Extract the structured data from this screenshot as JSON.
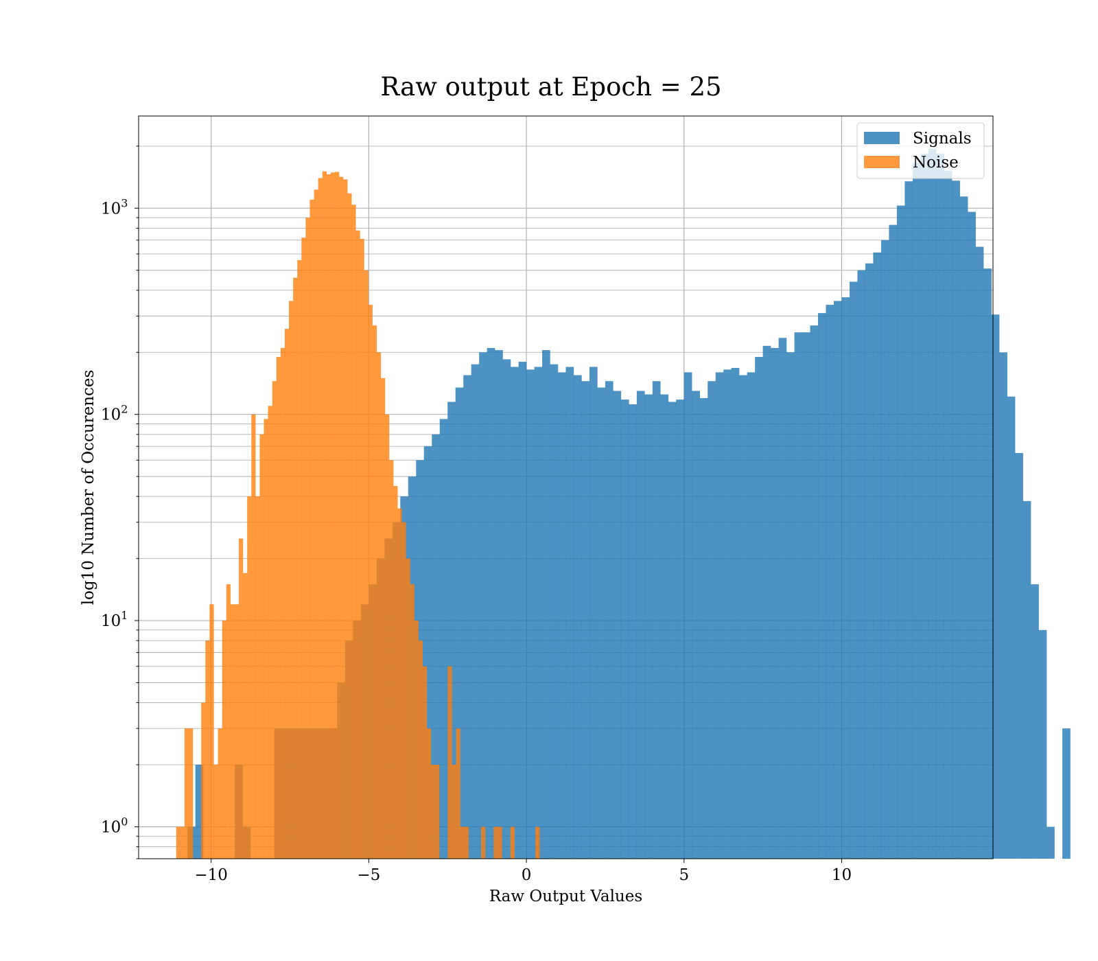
{
  "chart_data": {
    "type": "bar",
    "title": "Raw output at Epoch = 25",
    "xlabel": "Raw Output Values",
    "ylabel": "log10 Number of Occurences",
    "xlim": [
      -12.3,
      14.8
    ],
    "ylim": [
      0.7,
      2800
    ],
    "yscale": "log",
    "grid": true,
    "legend_position": "top-right",
    "x_ticks": [
      {
        "value": -10,
        "label": "−10"
      },
      {
        "value": -5,
        "label": "−5"
      },
      {
        "value": 0,
        "label": "0"
      },
      {
        "value": 5,
        "label": "5"
      },
      {
        "value": 10,
        "label": "10"
      }
    ],
    "y_ticks": [
      {
        "value": 1,
        "base": "10",
        "exp": "0"
      },
      {
        "value": 10,
        "base": "10",
        "exp": "1"
      },
      {
        "value": 100,
        "base": "10",
        "exp": "2"
      },
      {
        "value": 1000,
        "base": "10",
        "exp": "3"
      }
    ],
    "series": [
      {
        "name": "Signals",
        "color": "#1f77b4",
        "opacity": 0.8,
        "bin_start": -11,
        "bin_width": 0.25,
        "counts": [
          0,
          1,
          2,
          0,
          0,
          0,
          0,
          2,
          1,
          0,
          0,
          0,
          3,
          3,
          3,
          3,
          3,
          3,
          3,
          3,
          5,
          8,
          10,
          12,
          15,
          20,
          25,
          30,
          40,
          50,
          60,
          70,
          80,
          95,
          115,
          135,
          155,
          175,
          200,
          210,
          205,
          185,
          170,
          180,
          165,
          170,
          205,
          175,
          160,
          170,
          155,
          145,
          170,
          135,
          145,
          130,
          118,
          112,
          130,
          125,
          145,
          125,
          115,
          118,
          160,
          130,
          120,
          145,
          160,
          165,
          168,
          155,
          160,
          190,
          215,
          210,
          235,
          200,
          250,
          250,
          270,
          310,
          340,
          355,
          370,
          440,
          500,
          540,
          610,
          700,
          830,
          1030,
          1350,
          1660,
          1840,
          1940,
          1840,
          1520,
          1360,
          1140,
          960,
          650,
          510,
          305,
          200,
          122,
          65,
          38,
          15,
          9,
          1,
          0,
          3
        ]
      },
      {
        "name": "Noise",
        "color": "#ff7f0e",
        "opacity": 0.8,
        "bin_start": -11.11,
        "bin_width": 0.1325,
        "counts": [
          1,
          1,
          3,
          3,
          0,
          0,
          4,
          8,
          12,
          2,
          3,
          10,
          15,
          12,
          12,
          25,
          17,
          40,
          100,
          40,
          80,
          95,
          110,
          145,
          190,
          210,
          260,
          355,
          460,
          560,
          720,
          900,
          1100,
          1230,
          1400,
          1510,
          1460,
          1490,
          1500,
          1420,
          1380,
          1180,
          1040,
          780,
          710,
          500,
          340,
          270,
          200,
          150,
          100,
          60,
          45,
          35,
          30,
          20,
          15,
          10,
          8,
          6,
          3,
          2,
          2,
          0,
          0,
          6,
          2,
          3,
          1,
          1,
          0,
          0,
          0,
          1,
          0,
          0,
          1,
          1,
          0,
          0,
          1,
          0,
          0,
          0,
          0,
          0,
          1
        ]
      }
    ]
  }
}
